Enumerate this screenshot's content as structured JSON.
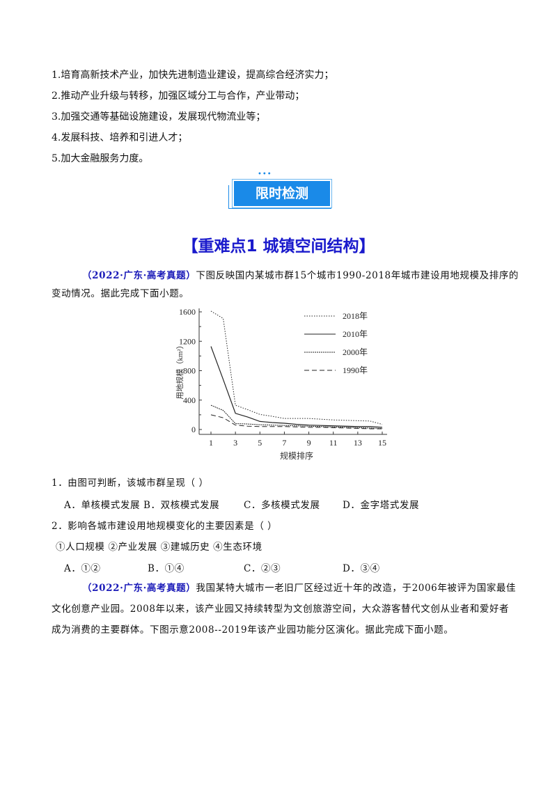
{
  "intro_list": [
    "1.培育高新技术产业，加快先进制造业建设，提高综合经济实力；",
    "2.推动产业升级与转移，加强区域分工与合作，产业带动；",
    "3.加强交通等基础设施建设，发展现代物流业等；",
    "4.发展科技、培养和引进人才；",
    "5.加大金融服务力度。"
  ],
  "banner": {
    "dots": "•••",
    "label": "限时检测"
  },
  "section_title": "【重难点1  城镇空间结构】",
  "q1_source": "（2022·广东·高考真题）",
  "q1_text_1": "下图反映国内某城市群15个城市1990-2018年城市建设用地规模及排序的",
  "q1_text_2": "变动情况。据此完成下面小题。",
  "chart_data": {
    "type": "line",
    "xlabel": "规模排序",
    "ylabel": "用地规模（km²）",
    "xlim": [
      1,
      15
    ],
    "ylim": [
      0,
      1600
    ],
    "xticks": [
      "1",
      "3",
      "5",
      "7",
      "9",
      "11",
      "13",
      "15"
    ],
    "yticks": [
      "0",
      "400",
      "800",
      "1200",
      "1600"
    ],
    "legend": "top-right",
    "grid": false,
    "x": [
      1,
      2,
      3,
      4,
      5,
      6,
      7,
      8,
      9,
      10,
      11,
      12,
      13,
      14,
      15
    ],
    "series": [
      {
        "name": "2018年",
        "style": "dotted",
        "values": [
          1610,
          1510,
          330,
          270,
          205,
          180,
          150,
          150,
          150,
          140,
          130,
          125,
          120,
          115,
          70
        ]
      },
      {
        "name": "2010年",
        "style": "solid",
        "values": [
          1130,
          680,
          220,
          170,
          110,
          95,
          85,
          70,
          60,
          55,
          50,
          45,
          40,
          40,
          30
        ]
      },
      {
        "name": "2000年",
        "style": "fine-dashed",
        "values": [
          330,
          260,
          80,
          75,
          65,
          60,
          55,
          50,
          45,
          40,
          35,
          30,
          25,
          20,
          15
        ]
      },
      {
        "name": "1990年",
        "style": "long-dashed",
        "values": [
          200,
          160,
          60,
          45,
          40,
          40,
          40,
          35,
          30,
          30,
          25,
          20,
          15,
          10,
          10
        ]
      }
    ]
  },
  "questions": [
    {
      "stem": "1．由图可判断，该城市群呈现（   ）",
      "options": [
        "A．单核模式发展",
        "B．双核模式发展",
        "C．多核模式发展",
        "D．金字塔式发展"
      ]
    },
    {
      "stem": "2．影响各城市建设用地规模变化的主要因素是（   ）",
      "items": "①人口规模  ②产业发展  ③建城历史  ④生态环境",
      "options": [
        "A．①②",
        "B．①④",
        "C．②③",
        "D．③④"
      ]
    }
  ],
  "q3_source": "（2022·广东·高考真题）",
  "q3_text_1": "我国某特大城市一老旧厂区经过近十年的改造，于2006年被评为国家最佳",
  "q3_text_2": "文化创意产业园。2008年以来，该产业园又持续转型为文创旅游空间，大众游客替代文创从业者和爱好者",
  "q3_text_3": "成为消费的主要群体。下图示意2008--2019年该产业园功能分区演化。据此完成下面小题。"
}
